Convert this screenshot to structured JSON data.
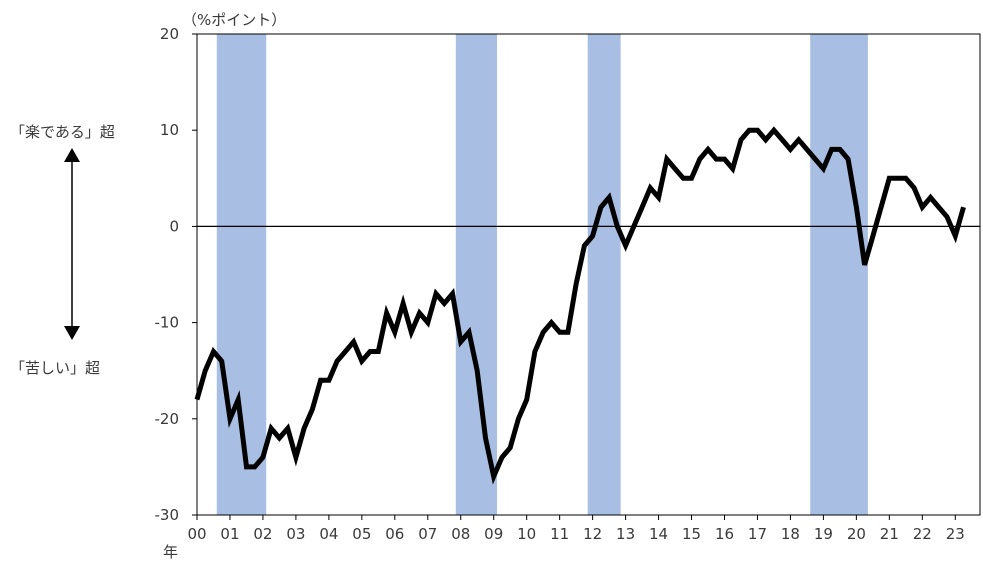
{
  "chart_data": {
    "type": "line",
    "unit_label": "（%ポイント）",
    "xlabel": "年",
    "ylim": [
      -30,
      20
    ],
    "yticks": [
      20,
      10,
      0,
      -10,
      -20,
      -30
    ],
    "x_start_year": 2000,
    "x_end_year": 2023.75,
    "year_ticks": [
      {
        "year": 2000,
        "label": "00"
      },
      {
        "year": 2001,
        "label": "01"
      },
      {
        "year": 2002,
        "label": "02"
      },
      {
        "year": 2003,
        "label": "03"
      },
      {
        "year": 2004,
        "label": "04"
      },
      {
        "year": 2005,
        "label": "05"
      },
      {
        "year": 2006,
        "label": "06"
      },
      {
        "year": 2007,
        "label": "07"
      },
      {
        "year": 2008,
        "label": "08"
      },
      {
        "year": 2009,
        "label": "09"
      },
      {
        "year": 2010,
        "label": "10"
      },
      {
        "year": 2011,
        "label": "11"
      },
      {
        "year": 2012,
        "label": "12"
      },
      {
        "year": 2013,
        "label": "13"
      },
      {
        "year": 2014,
        "label": "14"
      },
      {
        "year": 2015,
        "label": "15"
      },
      {
        "year": 2016,
        "label": "16"
      },
      {
        "year": 2017,
        "label": "17"
      },
      {
        "year": 2018,
        "label": "18"
      },
      {
        "year": 2019,
        "label": "19"
      },
      {
        "year": 2020,
        "label": "20"
      },
      {
        "year": 2021,
        "label": "21"
      },
      {
        "year": 2022,
        "label": "22"
      },
      {
        "year": 2023,
        "label": "23"
      }
    ],
    "annotation_top": "「楽である」超",
    "annotation_bottom": "「苦しい」超",
    "recession_periods": [
      {
        "start": 2000.6,
        "end": 2002.1
      },
      {
        "start": 2007.85,
        "end": 2009.1
      },
      {
        "start": 2011.85,
        "end": 2012.85
      },
      {
        "start": 2018.6,
        "end": 2020.35
      }
    ],
    "series": [
      {
        "values": [
          [
            2000.0,
            -18
          ],
          [
            2000.25,
            -15
          ],
          [
            2000.5,
            -13
          ],
          [
            2000.75,
            -14
          ],
          [
            2001.0,
            -20
          ],
          [
            2001.25,
            -18
          ],
          [
            2001.5,
            -25
          ],
          [
            2001.75,
            -25
          ],
          [
            2002.0,
            -24
          ],
          [
            2002.25,
            -21
          ],
          [
            2002.5,
            -22
          ],
          [
            2002.75,
            -21
          ],
          [
            2003.0,
            -24
          ],
          [
            2003.25,
            -21
          ],
          [
            2003.5,
            -19
          ],
          [
            2003.75,
            -16
          ],
          [
            2004.0,
            -16
          ],
          [
            2004.25,
            -14
          ],
          [
            2004.5,
            -13
          ],
          [
            2004.75,
            -12
          ],
          [
            2005.0,
            -14
          ],
          [
            2005.25,
            -13
          ],
          [
            2005.5,
            -13
          ],
          [
            2005.75,
            -9
          ],
          [
            2006.0,
            -11
          ],
          [
            2006.25,
            -8
          ],
          [
            2006.5,
            -11
          ],
          [
            2006.75,
            -9
          ],
          [
            2007.0,
            -10
          ],
          [
            2007.25,
            -7
          ],
          [
            2007.5,
            -8
          ],
          [
            2007.75,
            -7
          ],
          [
            2008.0,
            -12
          ],
          [
            2008.25,
            -11
          ],
          [
            2008.5,
            -15
          ],
          [
            2008.75,
            -22
          ],
          [
            2009.0,
            -26
          ],
          [
            2009.25,
            -24
          ],
          [
            2009.5,
            -23
          ],
          [
            2009.75,
            -20
          ],
          [
            2010.0,
            -18
          ],
          [
            2010.25,
            -13
          ],
          [
            2010.5,
            -11
          ],
          [
            2010.75,
            -10
          ],
          [
            2011.0,
            -11
          ],
          [
            2011.25,
            -11
          ],
          [
            2011.5,
            -6
          ],
          [
            2011.75,
            -2
          ],
          [
            2012.0,
            -1
          ],
          [
            2012.25,
            2
          ],
          [
            2012.5,
            3
          ],
          [
            2012.75,
            0
          ],
          [
            2013.0,
            -2
          ],
          [
            2013.25,
            0
          ],
          [
            2013.5,
            2
          ],
          [
            2013.75,
            4
          ],
          [
            2014.0,
            3
          ],
          [
            2014.25,
            7
          ],
          [
            2014.5,
            6
          ],
          [
            2014.75,
            5
          ],
          [
            2015.0,
            5
          ],
          [
            2015.25,
            7
          ],
          [
            2015.5,
            8
          ],
          [
            2015.75,
            7
          ],
          [
            2016.0,
            7
          ],
          [
            2016.25,
            6
          ],
          [
            2016.5,
            9
          ],
          [
            2016.75,
            10
          ],
          [
            2017.0,
            10
          ],
          [
            2017.25,
            9
          ],
          [
            2017.5,
            10
          ],
          [
            2017.75,
            9
          ],
          [
            2018.0,
            8
          ],
          [
            2018.25,
            9
          ],
          [
            2018.5,
            8
          ],
          [
            2018.75,
            7
          ],
          [
            2019.0,
            6
          ],
          [
            2019.25,
            8
          ],
          [
            2019.5,
            8
          ],
          [
            2019.75,
            7
          ],
          [
            2020.0,
            2
          ],
          [
            2020.25,
            -4
          ],
          [
            2020.5,
            -1
          ],
          [
            2020.75,
            2
          ],
          [
            2021.0,
            5
          ],
          [
            2021.25,
            5
          ],
          [
            2021.5,
            5
          ],
          [
            2021.75,
            4
          ],
          [
            2022.0,
            2
          ],
          [
            2022.25,
            3
          ],
          [
            2022.5,
            2
          ],
          [
            2022.75,
            1
          ],
          [
            2023.0,
            -1
          ],
          [
            2023.25,
            2
          ]
        ]
      }
    ],
    "colors": {
      "line": "#000000",
      "recession": "#a9bee3",
      "zero_line": "#000000",
      "frame": "#000000",
      "text": "#3a3a3a"
    },
    "grid": false
  }
}
